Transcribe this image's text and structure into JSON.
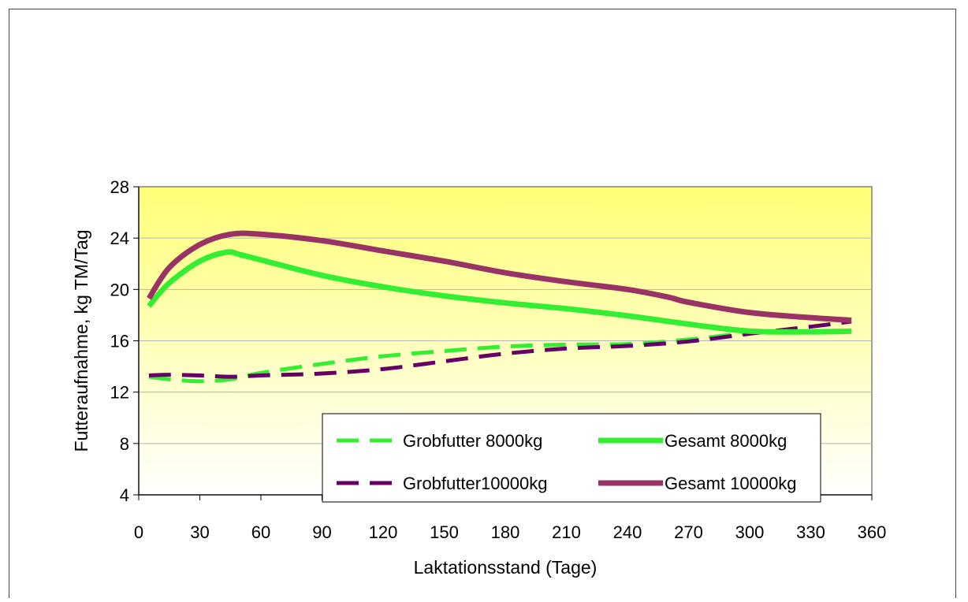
{
  "chart_data": {
    "type": "line",
    "title": "",
    "xlabel": "Laktationsstand (Tage)",
    "ylabel": "Futteraufnahme, kg TM/Tag",
    "xlim": [
      0,
      360
    ],
    "ylim": [
      4,
      28
    ],
    "xticks": [
      "0",
      "30",
      "60",
      "90",
      "120",
      "150",
      "180",
      "210",
      "240",
      "270",
      "300",
      "330",
      "360"
    ],
    "yticks": [
      "4",
      "8",
      "12",
      "16",
      "20",
      "24",
      "28"
    ],
    "grid": "horizontal",
    "legend_position": "bottom-right",
    "series": [
      {
        "name": "Grobfutter 8000kg",
        "color": "#33ee33",
        "style": "dashed",
        "x": [
          5,
          15,
          30,
          45,
          60,
          90,
          120,
          150,
          180,
          210,
          240,
          270,
          300,
          330,
          350
        ],
        "y": [
          13.2,
          13.0,
          12.85,
          13.0,
          13.5,
          14.2,
          14.8,
          15.2,
          15.55,
          15.7,
          15.75,
          16.1,
          16.6,
          16.75,
          16.8
        ]
      },
      {
        "name": "Gesamt 8000kg",
        "color": "#33ee33",
        "style": "solid",
        "x": [
          5,
          15,
          30,
          43,
          50,
          60,
          90,
          120,
          150,
          180,
          210,
          240,
          270,
          300,
          330,
          350
        ],
        "y": [
          18.7,
          20.5,
          22.2,
          22.9,
          22.7,
          22.3,
          21.1,
          20.2,
          19.5,
          18.95,
          18.5,
          17.95,
          17.3,
          16.75,
          16.7,
          16.75
        ]
      },
      {
        "name": "Grobfutter10000kg",
        "color": "#660066",
        "style": "dashed",
        "x": [
          5,
          15,
          30,
          45,
          60,
          90,
          120,
          150,
          180,
          210,
          240,
          270,
          300,
          330,
          350
        ],
        "y": [
          13.3,
          13.35,
          13.3,
          13.2,
          13.3,
          13.45,
          13.8,
          14.4,
          15.0,
          15.4,
          15.6,
          15.95,
          16.55,
          17.1,
          17.5
        ]
      },
      {
        "name": "Gesamt 10000kg",
        "color": "#993366",
        "style": "solid",
        "x": [
          5,
          15,
          30,
          45,
          60,
          90,
          120,
          150,
          180,
          210,
          240,
          260,
          270,
          300,
          330,
          350
        ],
        "y": [
          19.3,
          21.7,
          23.5,
          24.3,
          24.3,
          23.8,
          23.0,
          22.2,
          21.3,
          20.6,
          20.0,
          19.4,
          19.0,
          18.2,
          17.8,
          17.6
        ]
      }
    ]
  }
}
